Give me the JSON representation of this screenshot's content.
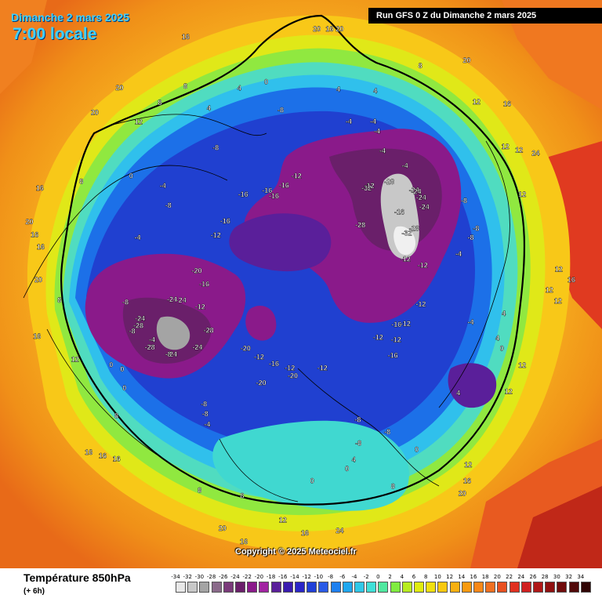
{
  "header": {
    "date_line": "Dimanche 2 mars 2025",
    "time_line": "7:00 locale",
    "run_line": "Run GFS 0 Z du Dimanche 2 mars 2025"
  },
  "footer": {
    "copyright": "Copyright © 2025 Meteociel.fr",
    "legend_title": "Température 850hPa",
    "legend_subtitle": "(+ 6h)"
  },
  "legend": {
    "values": [
      "-34",
      "-32",
      "-30",
      "-28",
      "-26",
      "-24",
      "-22",
      "-20",
      "-18",
      "-16",
      "-14",
      "-12",
      "-10",
      "-8",
      "-6",
      "-4",
      "-2",
      "0",
      "2",
      "4",
      "6",
      "8",
      "10",
      "12",
      "14",
      "16",
      "18",
      "20",
      "22",
      "24",
      "26",
      "28",
      "30",
      "32",
      "34"
    ],
    "colors": [
      "#e8e8e8",
      "#c8c8c8",
      "#a4a4a4",
      "#8a6a8a",
      "#7a3a7a",
      "#6a1f6a",
      "#8a1a8a",
      "#a224a2",
      "#5a1f9a",
      "#3a1cb0",
      "#2a26c8",
      "#2040d8",
      "#2a5ae6",
      "#1e80f0",
      "#20a8f0",
      "#30c8e8",
      "#40e0d8",
      "#50e8a0",
      "#80ec40",
      "#b8ec20",
      "#e0ec10",
      "#f0e010",
      "#f8c810",
      "#f8b010",
      "#f89a10",
      "#f88818",
      "#f07020",
      "#e85020",
      "#e03020",
      "#d02020",
      "#b01818",
      "#901010",
      "#700c0c",
      "#500808",
      "#300404"
    ]
  },
  "map_labels": {
    "isotherm_values": [
      "16",
      "16",
      "16",
      "16",
      "16",
      "12",
      "8",
      "4",
      "0",
      "-4",
      "-4",
      "-8",
      "-8",
      "-12",
      "-8",
      "-8",
      "-12",
      "-16",
      "-24",
      "-24",
      "-32",
      "-28",
      "-28",
      "-24",
      "-32",
      "-24",
      "-24",
      "-20",
      "-16",
      "-16",
      "-12",
      "-12",
      "-12",
      "-16",
      "-24",
      "-28",
      "-28",
      "-24",
      "-20",
      "-16",
      "-12",
      "-8",
      "-4",
      "0",
      "4",
      "8",
      "8",
      "-8",
      "-12",
      "-16",
      "-12",
      "-8",
      "-4",
      "0",
      "12",
      "12",
      "16",
      "20",
      "20",
      "20",
      "24",
      "20",
      "16",
      "12",
      "12",
      "8",
      "4",
      "0",
      "-4",
      "-8",
      "-12",
      "-16",
      "20",
      "16",
      "12",
      "8",
      "4",
      "0",
      "-4",
      "-8",
      "16",
      "12",
      "8",
      "4",
      "12",
      "16",
      "20",
      "24",
      "20",
      "12",
      "16",
      "20",
      "12",
      "16",
      "12",
      "16",
      "8",
      "4",
      "0",
      "-4",
      "-8",
      "-12",
      "-8",
      "-4",
      "0",
      "4",
      "8",
      "12",
      "16",
      "20",
      "12",
      "8",
      "4",
      "0",
      "-4",
      "-8",
      "-16",
      "-16",
      "-12",
      "-8",
      "-4",
      "0",
      "-4",
      "-12",
      "-20",
      "-24",
      "-28",
      "-28",
      "-24",
      "-20",
      "-16",
      "-12",
      "-8"
    ]
  }
}
